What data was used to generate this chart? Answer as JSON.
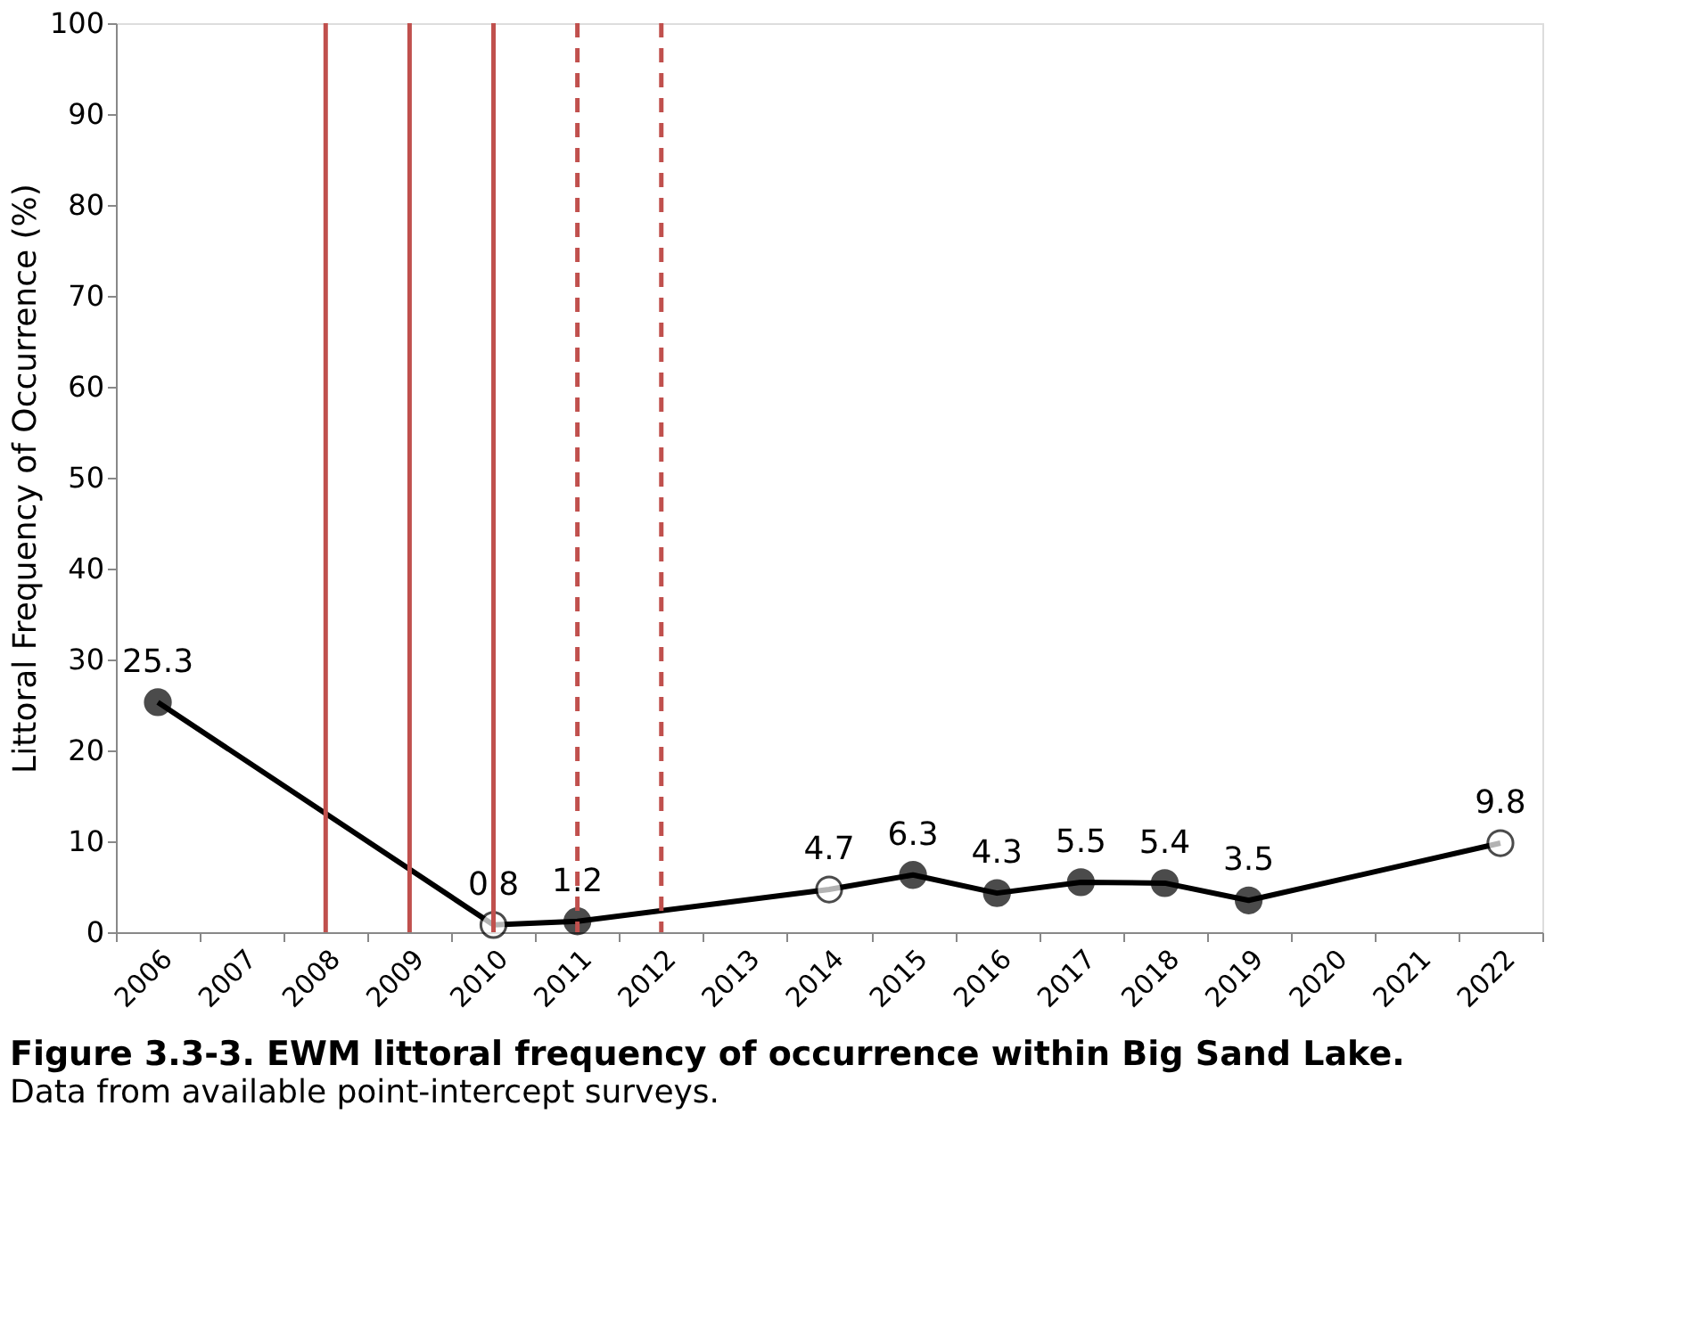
{
  "chart_data": {
    "type": "line",
    "title": "Figure 3.3-3.  EWM littoral frequency of occurrence within Big Sand Lake.",
    "subtitle": "Data from available point-intercept surveys.",
    "ylabel": "Littoral Frequency of Occurrence (%)",
    "categories": [
      "2006",
      "2007",
      "2008",
      "2009",
      "2010",
      "2011",
      "2012",
      "2013",
      "2014",
      "2015",
      "2016",
      "2017",
      "2018",
      "2019",
      "2020",
      "2021",
      "2022"
    ],
    "series": [
      {
        "color": "#000000",
        "values": [
          25.3,
          null,
          null,
          null,
          0.8,
          1.2,
          null,
          null,
          4.7,
          6.3,
          4.3,
          5.5,
          5.4,
          3.5,
          null,
          null,
          9.8
        ],
        "colors": [
          "#000000",
          null,
          null,
          null,
          "#ffffff",
          "#000000",
          null,
          null,
          "#ffffff",
          "#000000",
          "#000000",
          "#000000",
          "#000000",
          "#000000",
          null,
          null,
          "#ffffff"
        ]
      }
    ],
    "ylim": [
      0,
      100
    ],
    "yticks": [
      0,
      10,
      20,
      30,
      40,
      50,
      60,
      70,
      80,
      90,
      100
    ],
    "grid": false,
    "marker": "circle",
    "line_style": "solid",
    "data_labels": true,
    "ref_lines": [
      {
        "axis": "x",
        "value": "2008",
        "color": "#c0504d",
        "line_style": "solid"
      },
      {
        "axis": "x",
        "value": "2009",
        "color": "#c0504d",
        "line_style": "solid"
      },
      {
        "axis": "x",
        "value": "2010",
        "color": "#c0504d",
        "line_style": "solid"
      },
      {
        "axis": "x",
        "value": "2011",
        "color": "#c0504d",
        "line_style": "dashed"
      },
      {
        "axis": "x",
        "value": "2012",
        "color": "#c0504d",
        "line_style": "dashed"
      }
    ]
  }
}
